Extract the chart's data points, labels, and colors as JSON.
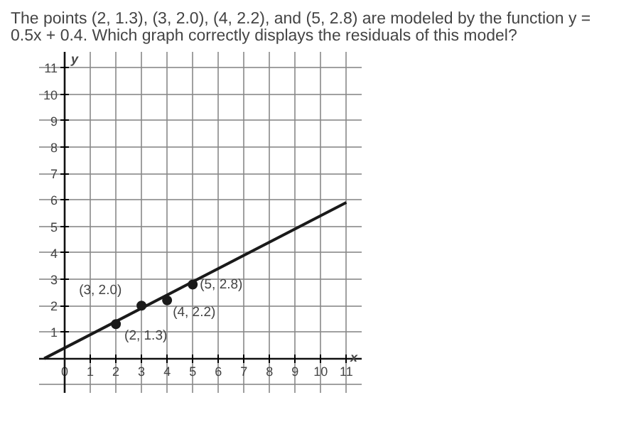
{
  "chart_data": {
    "type": "scatter",
    "title": "The points (2, 1.3), (3, 2.0), (4, 2.2), and (5, 2.8) are modeled by the function y = 0.5x + 0.4. Which graph correctly displays the residuals of this model?",
    "xlabel": "x",
    "ylabel": "y",
    "xlim": [
      -1,
      11.6
    ],
    "ylim": [
      -1.3,
      11.6
    ],
    "xticks": [
      0,
      1,
      2,
      3,
      4,
      5,
      6,
      7,
      8,
      9,
      10,
      11
    ],
    "yticks": [
      1,
      2,
      3,
      4,
      5,
      6,
      7,
      8,
      9,
      10,
      11
    ],
    "grid": true,
    "series": [
      {
        "type": "line",
        "color": "#1a1a1a",
        "x": [
          -0.8,
          11
        ],
        "values": [
          0,
          5.9
        ]
      },
      {
        "marker": "circle",
        "color": "#1a1a1a",
        "x": [
          2,
          3,
          4,
          5
        ],
        "values": [
          1.3,
          2.0,
          2.2,
          2.8
        ],
        "value_labels": [
          "(2, 1.3)",
          "(3, 2.0)",
          "(4, 2.2)",
          "(5, 2.8)"
        ]
      }
    ]
  }
}
